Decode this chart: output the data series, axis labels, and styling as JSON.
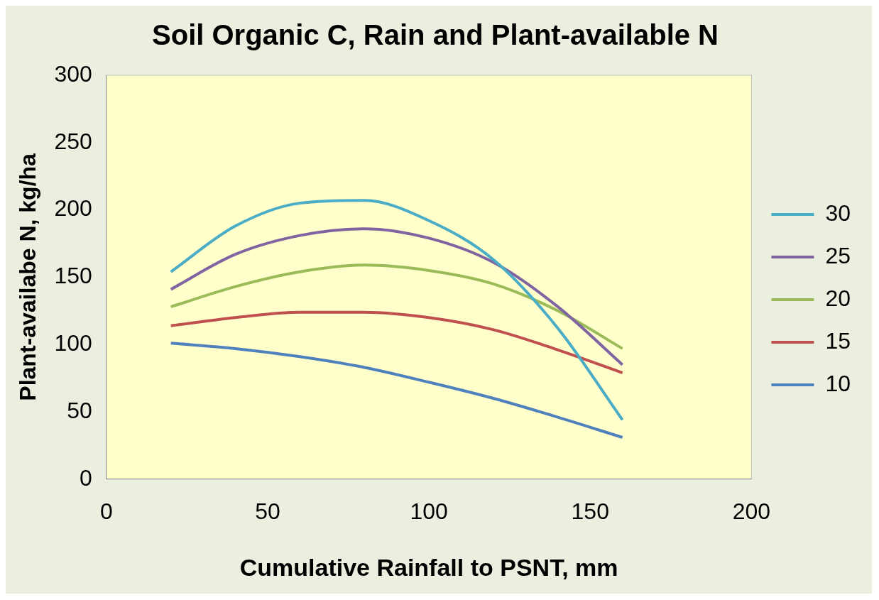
{
  "chart_data": {
    "type": "line",
    "title": "Soil Organic C, Rain and Plant-available N",
    "xlabel": "Cumulative Rainfall to PSNT, mm",
    "ylabel": "Plant-availabe N, kg/ha",
    "x": [
      20,
      40,
      60,
      80,
      100,
      120,
      140,
      160
    ],
    "xlim": [
      0,
      200
    ],
    "xticks": [
      0,
      50,
      100,
      150,
      200
    ],
    "ylim": [
      0,
      300
    ],
    "yticks": [
      0,
      50,
      100,
      150,
      200,
      250,
      300
    ],
    "grid": false,
    "legend": "right",
    "marker": "none",
    "line_style": "solid",
    "series": [
      {
        "name": "30",
        "color": "#4bacc6",
        "values": [
          154,
          188,
          205,
          207,
          192,
          163,
          112,
          44
        ]
      },
      {
        "name": "25",
        "color": "#8064a2",
        "values": [
          141,
          167,
          181,
          186,
          179,
          161,
          128,
          85
        ]
      },
      {
        "name": "20",
        "color": "#9bbb59",
        "values": [
          128,
          143,
          154,
          159,
          155,
          145,
          125,
          97
        ]
      },
      {
        "name": "15",
        "color": "#c0504d",
        "values": [
          114,
          120,
          124,
          124,
          120,
          111,
          96,
          79
        ]
      },
      {
        "name": "10",
        "color": "#4f81bd",
        "values": [
          101,
          97,
          91,
          83,
          72,
          60,
          46,
          31
        ]
      }
    ]
  }
}
